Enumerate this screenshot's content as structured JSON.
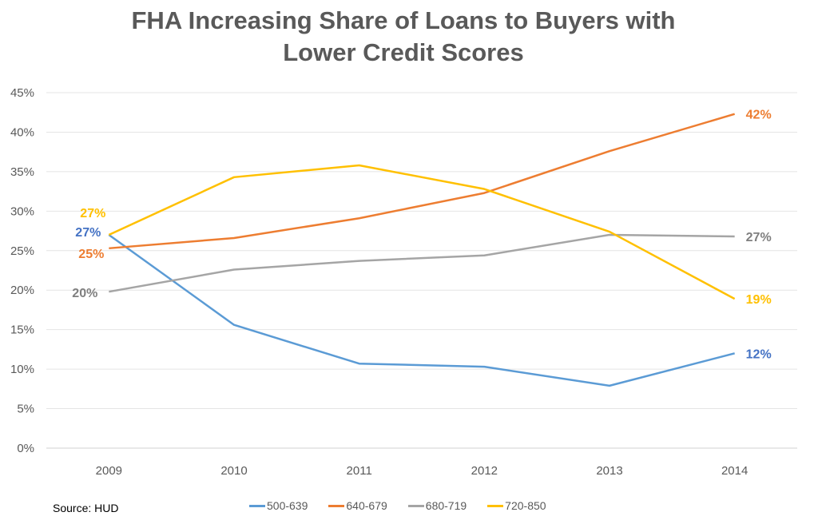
{
  "chart_data": {
    "type": "line",
    "title": "FHA Increasing Share of Loans to Buyers with Lower Credit Scores",
    "title_lines": [
      "FHA Increasing Share of Loans to Buyers with",
      "Lower Credit Scores"
    ],
    "categories": [
      "2009",
      "2010",
      "2011",
      "2012",
      "2013",
      "2014"
    ],
    "y_ticks": [
      "0%",
      "5%",
      "10%",
      "15%",
      "20%",
      "25%",
      "30%",
      "35%",
      "40%",
      "45%"
    ],
    "ylim": [
      0,
      45
    ],
    "grid": true,
    "legend_position": "bottom",
    "series": [
      {
        "name": "500-639",
        "color": "#5B9BD5",
        "label_color": "#4472C4",
        "values": [
          27,
          15.6,
          10.7,
          10.3,
          7.9,
          12.0
        ],
        "start_label": "27%",
        "end_label": "12%"
      },
      {
        "name": "640-679",
        "color": "#ED7D31",
        "label_color": "#ED7D31",
        "values": [
          25.3,
          26.6,
          29.1,
          32.3,
          37.6,
          42.3
        ],
        "start_label": "25%",
        "end_label": "42%"
      },
      {
        "name": "680-719",
        "color": "#A5A5A5",
        "label_color": "#7F7F7F",
        "values": [
          19.8,
          22.6,
          23.7,
          24.4,
          27.0,
          26.8
        ],
        "start_label": "20%",
        "end_label": "27%"
      },
      {
        "name": "720-850",
        "color": "#FFC000",
        "label_color": "#FFC000",
        "values": [
          27,
          34.3,
          35.8,
          32.8,
          27.4,
          18.9
        ],
        "start_label": "27%",
        "end_label": "19%"
      }
    ]
  },
  "source": "Source: HUD"
}
